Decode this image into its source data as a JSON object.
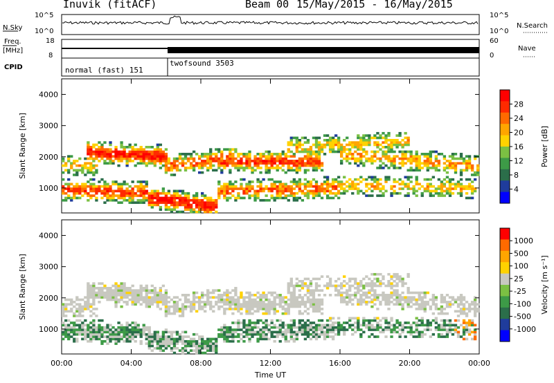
{
  "header": {
    "station": "Inuvik (fitACF)",
    "beam": "Beam 00",
    "date_range": "15/May/2015 - 16/May/2015"
  },
  "panels": {
    "nsky_label": "N.Sky",
    "nsky_ticks": [
      "10^5",
      "10^0"
    ],
    "nsearch_label": "N.Search",
    "nsearch_ticks": [
      "10^5",
      "10^0"
    ],
    "freq_label": "Freq.",
    "freq_unit": "[MHz]",
    "freq_ticks": [
      "18",
      "8"
    ],
    "nave_label": "Nave",
    "nave_ticks": [
      "60",
      "0"
    ],
    "cpid_label": "CPID",
    "cpid_modes": [
      {
        "name": "normal (fast)",
        "id": "151"
      },
      {
        "name": "twofsound",
        "id": "3503"
      }
    ]
  },
  "colors": {
    "power_scale": [
      "#0000ff",
      "#1f3c9c",
      "#2b6e4a",
      "#3d9a47",
      "#7bc043",
      "#ffd200",
      "#ffa500",
      "#ff6a00",
      "#ff2a00",
      "#ff0000"
    ],
    "velocity_scale": [
      "#0000ff",
      "#1f3c9c",
      "#2b6e4a",
      "#3d9a47",
      "#7bc043",
      "#c8c8c0",
      "#ffd200",
      "#ffa500",
      "#ff6a00",
      "#ff0000"
    ]
  },
  "chart_data": [
    {
      "type": "heatmap",
      "name": "Power",
      "xlabel": "",
      "ylabel": "Slant Range [km]",
      "x_ticks": [
        "00:00",
        "04:00",
        "08:00",
        "12:00",
        "16:00",
        "20:00",
        "00:00"
      ],
      "y_ticks": [
        1000,
        2000,
        3000,
        4000
      ],
      "ylim": [
        200,
        4500
      ],
      "colorbar": {
        "label": "Power [dB]",
        "ticks": [
          "28",
          "24",
          "20",
          "16",
          "12",
          "8",
          "4"
        ],
        "range": [
          0,
          30
        ]
      }
    },
    {
      "type": "heatmap",
      "name": "Velocity",
      "xlabel": "Time UT",
      "ylabel": "Slant Range [km]",
      "x_ticks": [
        "00:00",
        "04:00",
        "08:00",
        "12:00",
        "16:00",
        "20:00",
        "00:00"
      ],
      "y_ticks": [
        1000,
        2000,
        3000,
        4000
      ],
      "ylim": [
        200,
        4500
      ],
      "colorbar": {
        "label": "Velocity [m s⁻¹]",
        "ticks": [
          "1000",
          "500",
          "100",
          "25",
          "-25",
          "-100",
          "-500",
          "-1000"
        ]
      }
    }
  ]
}
